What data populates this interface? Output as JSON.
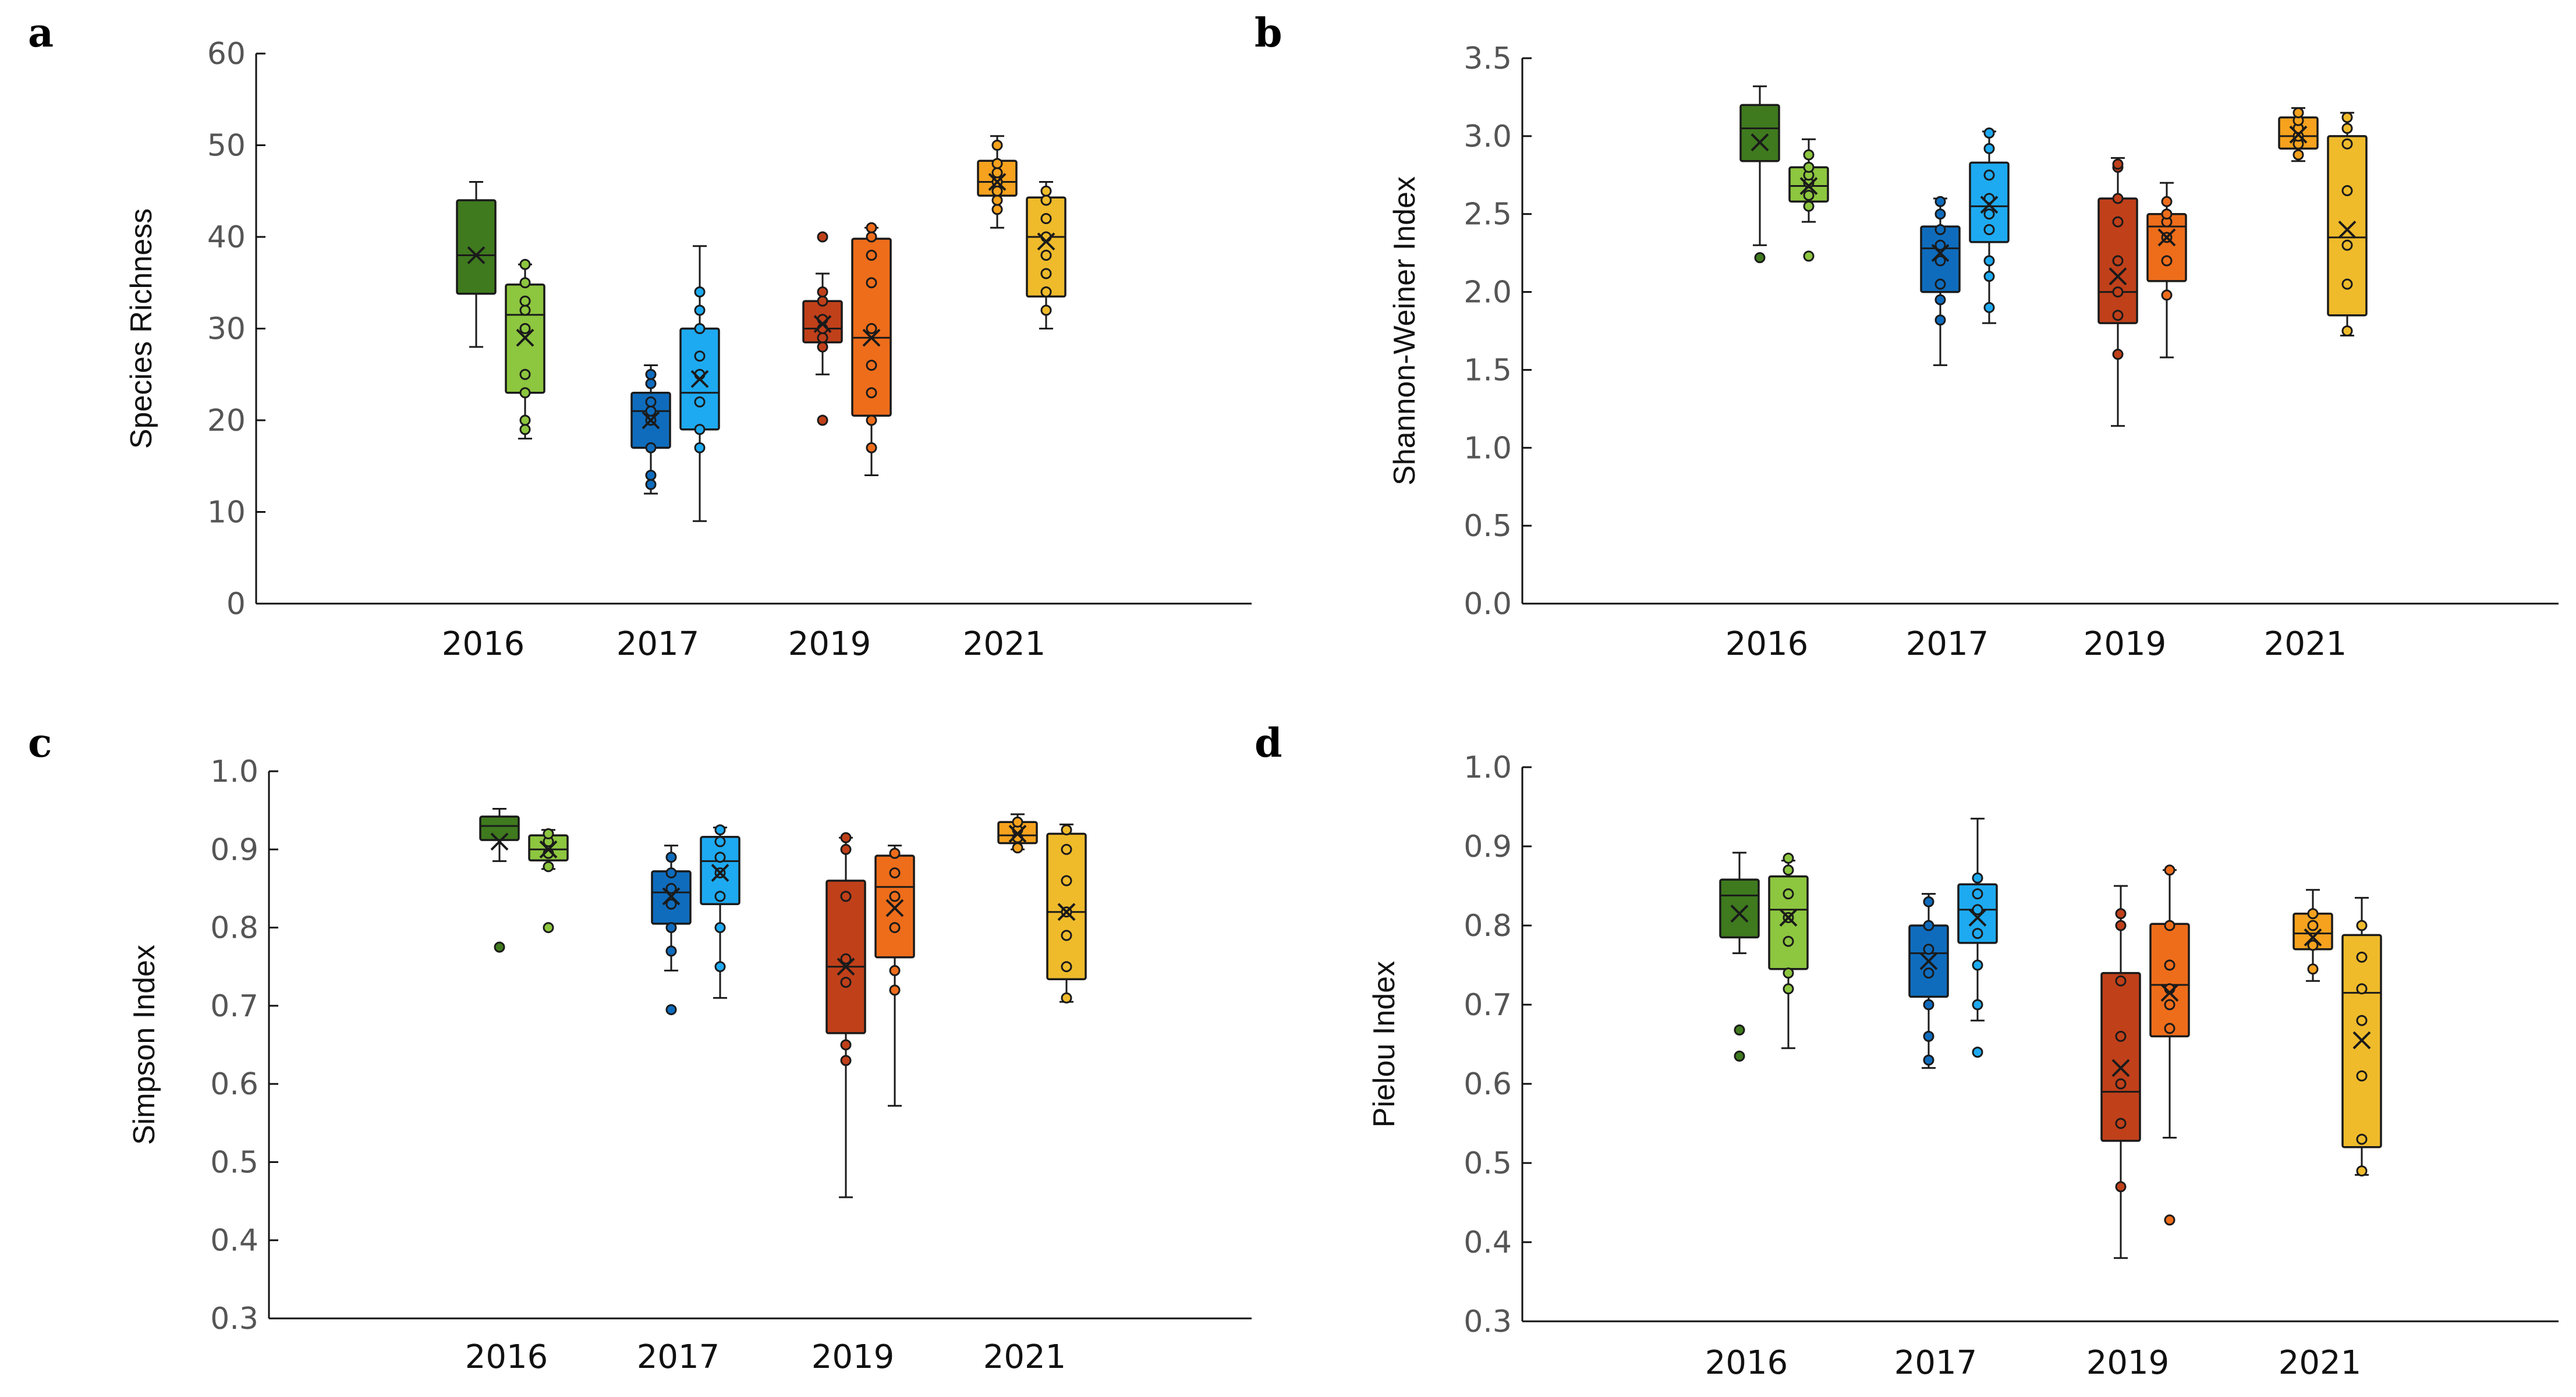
{
  "chart_data": [
    {
      "panel": "a",
      "type": "box",
      "ylabel": "Species Richness",
      "ylim": [
        0,
        60
      ],
      "yticks": [
        "0",
        "10",
        "20",
        "30",
        "40",
        "50",
        "60"
      ],
      "categories": [
        "2016",
        "2017",
        "2019",
        "2021"
      ],
      "groups": [
        {
          "category": "2016",
          "color": "#3f7a1e",
          "q1": 33.8,
          "median": 38,
          "q3": 44,
          "min": 28,
          "max": 46,
          "mean": 38,
          "points": []
        },
        {
          "category": "2016",
          "color": "#8dc63f",
          "q1": 23,
          "median": 31.5,
          "q3": 34.8,
          "min": 18,
          "max": 37,
          "mean": 29,
          "points": [
            19,
            20,
            23,
            25,
            30,
            32,
            33,
            35,
            37
          ]
        },
        {
          "category": "2017",
          "color": "#0f6cbd",
          "q1": 17,
          "median": 21,
          "q3": 23,
          "min": 12,
          "max": 26,
          "mean": 20,
          "points": [
            13,
            14,
            17,
            20,
            21,
            22,
            24,
            25
          ]
        },
        {
          "category": "2017",
          "color": "#1eaaf1",
          "q1": 19,
          "median": 23,
          "q3": 30,
          "min": 9,
          "max": 39,
          "mean": 24.5,
          "points": [
            17,
            19,
            22,
            25,
            27,
            30,
            32,
            34
          ]
        },
        {
          "category": "2019",
          "color": "#c0401a",
          "q1": 28.5,
          "median": 30,
          "q3": 33,
          "min": 25,
          "max": 36,
          "mean": 30.5,
          "points": [
            20,
            28,
            29,
            30,
            31,
            33,
            34,
            40
          ]
        },
        {
          "category": "2019",
          "color": "#ee6d1b",
          "q1": 20.5,
          "median": 29,
          "q3": 39.8,
          "min": 14,
          "max": 41,
          "mean": 29,
          "points": [
            17,
            20,
            23,
            26,
            30,
            35,
            38,
            40,
            41
          ]
        },
        {
          "category": "2021",
          "color": "#f6a21e",
          "q1": 44.5,
          "median": 46,
          "q3": 48.3,
          "min": 41,
          "max": 51,
          "mean": 46,
          "points": [
            43,
            44,
            45,
            46,
            47,
            48,
            50
          ]
        },
        {
          "category": "2021",
          "color": "#efbb2b",
          "q1": 33.5,
          "median": 40,
          "q3": 44.3,
          "min": 30,
          "max": 46,
          "mean": 39.5,
          "points": [
            32,
            34,
            36,
            38,
            40,
            42,
            44,
            45
          ]
        }
      ]
    },
    {
      "panel": "b",
      "type": "box",
      "ylabel": "Shannon-Weiner Index",
      "ylim": [
        0,
        3.5
      ],
      "yticks": [
        "0.0",
        "0.5",
        "1.0",
        "1.5",
        "2.0",
        "2.5",
        "3.0",
        "3.5"
      ],
      "categories": [
        "2016",
        "2017",
        "2019",
        "2021"
      ],
      "groups": [
        {
          "category": "2016",
          "color": "#3f7a1e",
          "q1": 2.84,
          "median": 3.05,
          "q3": 3.2,
          "min": 2.3,
          "max": 3.32,
          "mean": 2.96,
          "points": [
            2.22
          ]
        },
        {
          "category": "2016",
          "color": "#8dc63f",
          "q1": 2.58,
          "median": 2.68,
          "q3": 2.8,
          "min": 2.45,
          "max": 2.98,
          "mean": 2.68,
          "points": [
            2.23,
            2.55,
            2.62,
            2.7,
            2.75,
            2.8,
            2.88
          ]
        },
        {
          "category": "2017",
          "color": "#0f6cbd",
          "q1": 2.0,
          "median": 2.28,
          "q3": 2.42,
          "min": 1.53,
          "max": 2.6,
          "mean": 2.25,
          "points": [
            1.82,
            1.95,
            2.05,
            2.2,
            2.3,
            2.4,
            2.5,
            2.58
          ]
        },
        {
          "category": "2017",
          "color": "#1eaaf1",
          "q1": 2.32,
          "median": 2.55,
          "q3": 2.83,
          "min": 1.8,
          "max": 3.03,
          "mean": 2.56,
          "points": [
            1.9,
            2.1,
            2.2,
            2.4,
            2.5,
            2.6,
            2.75,
            2.92,
            3.02
          ]
        },
        {
          "category": "2019",
          "color": "#c0401a",
          "q1": 1.8,
          "median": 2.0,
          "q3": 2.6,
          "min": 1.14,
          "max": 2.86,
          "mean": 2.1,
          "points": [
            1.6,
            1.85,
            2.0,
            2.2,
            2.45,
            2.6,
            2.8,
            2.82
          ]
        },
        {
          "category": "2019",
          "color": "#ee6d1b",
          "q1": 2.07,
          "median": 2.42,
          "q3": 2.5,
          "min": 1.58,
          "max": 2.7,
          "mean": 2.35,
          "points": [
            1.98,
            2.2,
            2.35,
            2.45,
            2.5,
            2.58
          ]
        },
        {
          "category": "2021",
          "color": "#f6a21e",
          "q1": 2.92,
          "median": 3.0,
          "q3": 3.12,
          "min": 2.84,
          "max": 3.18,
          "mean": 3.01,
          "points": [
            2.88,
            2.95,
            3.0,
            3.05,
            3.1,
            3.15
          ]
        },
        {
          "category": "2021",
          "color": "#efbb2b",
          "q1": 1.85,
          "median": 2.35,
          "q3": 3.0,
          "min": 1.72,
          "max": 3.15,
          "mean": 2.4,
          "points": [
            1.75,
            2.05,
            2.3,
            2.65,
            2.95,
            3.05,
            3.12
          ]
        }
      ]
    },
    {
      "panel": "c",
      "type": "box",
      "ylabel": "Simpson Index",
      "ylim": [
        0.3,
        1.0
      ],
      "yticks": [
        "0.3",
        "0.4",
        "0.5",
        "0.6",
        "0.7",
        "0.8",
        "0.9",
        "1.0"
      ],
      "categories": [
        "2016",
        "2017",
        "2019",
        "2021"
      ],
      "groups": [
        {
          "category": "2016",
          "color": "#3f7a1e",
          "q1": 0.912,
          "median": 0.93,
          "q3": 0.942,
          "min": 0.885,
          "max": 0.952,
          "mean": 0.91,
          "points": [
            0.775
          ]
        },
        {
          "category": "2016",
          "color": "#8dc63f",
          "q1": 0.886,
          "median": 0.9,
          "q3": 0.918,
          "min": 0.875,
          "max": 0.925,
          "mean": 0.9,
          "points": [
            0.8,
            0.878,
            0.895,
            0.91,
            0.92
          ]
        },
        {
          "category": "2017",
          "color": "#0f6cbd",
          "q1": 0.805,
          "median": 0.845,
          "q3": 0.872,
          "min": 0.745,
          "max": 0.905,
          "mean": 0.84,
          "points": [
            0.695,
            0.77,
            0.8,
            0.83,
            0.85,
            0.87,
            0.89
          ]
        },
        {
          "category": "2017",
          "color": "#1eaaf1",
          "q1": 0.83,
          "median": 0.885,
          "q3": 0.916,
          "min": 0.71,
          "max": 0.928,
          "mean": 0.87,
          "points": [
            0.75,
            0.8,
            0.84,
            0.87,
            0.89,
            0.91,
            0.925
          ]
        },
        {
          "category": "2019",
          "color": "#c0401a",
          "q1": 0.665,
          "median": 0.75,
          "q3": 0.86,
          "min": 0.455,
          "max": 0.915,
          "mean": 0.75,
          "points": [
            0.63,
            0.65,
            0.73,
            0.76,
            0.84,
            0.9,
            0.915
          ]
        },
        {
          "category": "2019",
          "color": "#ee6d1b",
          "q1": 0.762,
          "median": 0.852,
          "q3": 0.892,
          "min": 0.572,
          "max": 0.905,
          "mean": 0.825,
          "points": [
            0.72,
            0.745,
            0.8,
            0.84,
            0.87,
            0.895
          ]
        },
        {
          "category": "2021",
          "color": "#f6a21e",
          "q1": 0.908,
          "median": 0.918,
          "q3": 0.935,
          "min": 0.9,
          "max": 0.945,
          "mean": 0.92,
          "points": [
            0.902,
            0.915,
            0.925,
            0.935
          ]
        },
        {
          "category": "2021",
          "color": "#efbb2b",
          "q1": 0.734,
          "median": 0.82,
          "q3": 0.92,
          "min": 0.705,
          "max": 0.932,
          "mean": 0.82,
          "points": [
            0.71,
            0.75,
            0.79,
            0.82,
            0.86,
            0.9,
            0.925
          ]
        }
      ]
    },
    {
      "panel": "d",
      "type": "box",
      "ylabel": "Pielou Index",
      "ylim": [
        0.3,
        1.0
      ],
      "yticks": [
        "0.3",
        "0.4",
        "0.5",
        "0.6",
        "0.7",
        "0.8",
        "0.9",
        "1.0"
      ],
      "categories": [
        "2016",
        "2017",
        "2019",
        "2021"
      ],
      "groups": [
        {
          "category": "2016",
          "color": "#3f7a1e",
          "q1": 0.785,
          "median": 0.838,
          "q3": 0.858,
          "min": 0.765,
          "max": 0.892,
          "mean": 0.815,
          "points": [
            0.635,
            0.668
          ]
        },
        {
          "category": "2016",
          "color": "#8dc63f",
          "q1": 0.745,
          "median": 0.82,
          "q3": 0.862,
          "min": 0.645,
          "max": 0.882,
          "mean": 0.81,
          "points": [
            0.72,
            0.74,
            0.78,
            0.81,
            0.84,
            0.87,
            0.885
          ]
        },
        {
          "category": "2017",
          "color": "#0f6cbd",
          "q1": 0.71,
          "median": 0.765,
          "q3": 0.8,
          "min": 0.62,
          "max": 0.84,
          "mean": 0.755,
          "points": [
            0.63,
            0.66,
            0.7,
            0.74,
            0.77,
            0.8,
            0.83
          ]
        },
        {
          "category": "2017",
          "color": "#1eaaf1",
          "q1": 0.778,
          "median": 0.82,
          "q3": 0.852,
          "min": 0.68,
          "max": 0.935,
          "mean": 0.81,
          "points": [
            0.64,
            0.7,
            0.75,
            0.79,
            0.82,
            0.84,
            0.86
          ]
        },
        {
          "category": "2019",
          "color": "#c0401a",
          "q1": 0.528,
          "median": 0.59,
          "q3": 0.74,
          "min": 0.38,
          "max": 0.85,
          "mean": 0.62,
          "points": [
            0.47,
            0.55,
            0.6,
            0.66,
            0.73,
            0.8,
            0.815
          ]
        },
        {
          "category": "2019",
          "color": "#ee6d1b",
          "q1": 0.66,
          "median": 0.725,
          "q3": 0.802,
          "min": 0.532,
          "max": 0.87,
          "mean": 0.715,
          "points": [
            0.428,
            0.67,
            0.7,
            0.72,
            0.75,
            0.8,
            0.87
          ]
        },
        {
          "category": "2021",
          "color": "#f6a21e",
          "q1": 0.77,
          "median": 0.79,
          "q3": 0.815,
          "min": 0.73,
          "max": 0.845,
          "mean": 0.785,
          "points": [
            0.745,
            0.775,
            0.8,
            0.815
          ]
        },
        {
          "category": "2021",
          "color": "#efbb2b",
          "q1": 0.52,
          "median": 0.715,
          "q3": 0.788,
          "min": 0.485,
          "max": 0.835,
          "mean": 0.655,
          "points": [
            0.49,
            0.53,
            0.61,
            0.68,
            0.72,
            0.76,
            0.8
          ]
        }
      ]
    }
  ]
}
